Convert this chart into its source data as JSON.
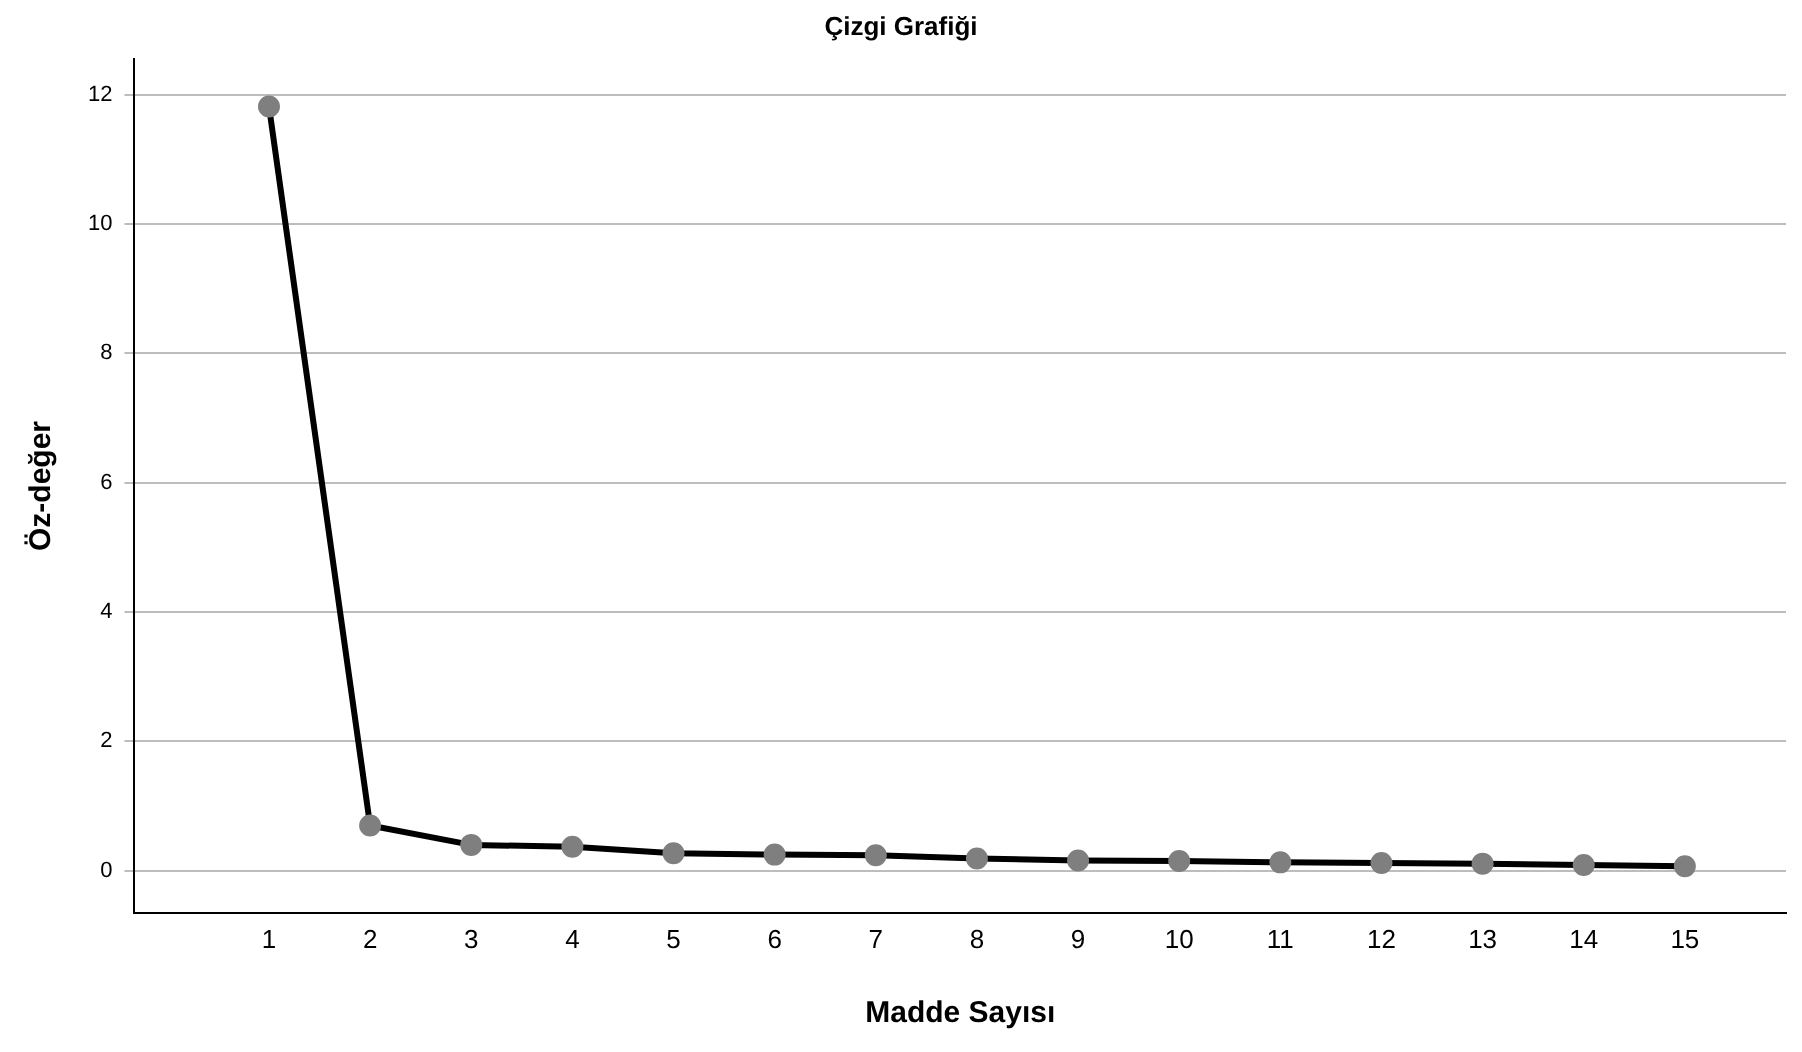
{
  "chart_data": {
    "type": "line",
    "title": "Çizgi Grafiği",
    "xlabel": "Madde Sayısı",
    "ylabel": "Öz-değer",
    "x": [
      1,
      2,
      3,
      4,
      5,
      6,
      7,
      8,
      9,
      10,
      11,
      12,
      13,
      14,
      15
    ],
    "series": [
      {
        "color": "#000000",
        "values": [
          11.82,
          0.7,
          0.4,
          0.37,
          0.27,
          0.25,
          0.24,
          0.19,
          0.16,
          0.15,
          0.13,
          0.12,
          0.11,
          0.09,
          0.07
        ]
      }
    ],
    "xlim": [
      -0.33,
      16
    ],
    "xticks": [
      1,
      2,
      3,
      4,
      5,
      6,
      7,
      8,
      9,
      10,
      11,
      12,
      13,
      14,
      15
    ],
    "ylim": [
      -0.65,
      12.55
    ],
    "yticks": [
      0,
      2,
      4,
      6,
      8,
      10,
      12
    ],
    "grid": "y",
    "marker": "circle",
    "line_style": "solid"
  }
}
